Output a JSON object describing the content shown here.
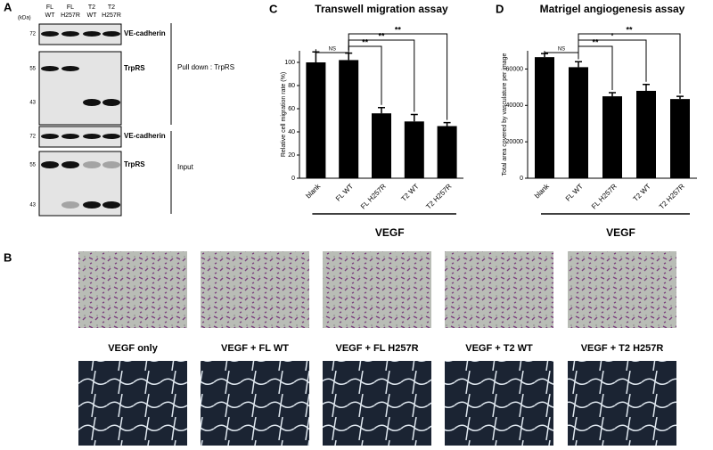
{
  "panel_a": {
    "label": "A",
    "unit": "(kDa)",
    "lanes": [
      [
        "FL",
        "WT"
      ],
      [
        "FL",
        "H257R"
      ],
      [
        "T2",
        "WT"
      ],
      [
        "T2",
        "H257R"
      ]
    ],
    "blots": [
      {
        "markers": [
          72
        ],
        "label": "VE-cadherin"
      },
      {
        "markers": [
          55,
          43
        ],
        "label": "TrpRS"
      },
      {
        "markers": [
          72
        ],
        "label": "VE-cadherin"
      },
      {
        "markers": [
          55,
          43
        ],
        "label": "TrpRS"
      }
    ],
    "groups": [
      "Pull down : TrpRS",
      "Input"
    ]
  },
  "panel_b": {
    "label": "B",
    "captions": [
      "VEGF only",
      "VEGF + FL WT",
      "VEGF + FL H257R",
      "VEGF + T2 WT",
      "VEGF + T2 H257R"
    ]
  },
  "chart_data": [
    {
      "type": "bar",
      "panel": "C",
      "title": "Transwell migration assay",
      "ylabel": "Relative cell migration rate (%)",
      "categories": [
        "blank",
        "FL WT",
        "FL H257R",
        "T2 WT",
        "T2 H257R"
      ],
      "values": [
        100,
        102,
        56,
        49,
        45
      ],
      "errors": [
        9,
        6,
        5,
        6,
        3
      ],
      "color": "#000000",
      "ylim": [
        0,
        110
      ],
      "yticks": [
        0,
        20,
        40,
        60,
        80,
        100
      ],
      "group_label": "VEGF",
      "annotations": [
        {
          "text": "NS",
          "from": 0,
          "to": 1
        },
        {
          "text": "**",
          "from": 1,
          "to": 2
        },
        {
          "text": "**",
          "from": 1,
          "to": 3
        },
        {
          "text": "**",
          "from": 1,
          "to": 4
        }
      ]
    },
    {
      "type": "bar",
      "panel": "D",
      "title": "Matrigel angiogenesis assay",
      "ylabel": "Total area covered by vasculature per image",
      "categories": [
        "blank",
        "FL WT",
        "FL H257R",
        "T2 WT",
        "T2 H257R"
      ],
      "values": [
        66500,
        61000,
        45000,
        48000,
        43500
      ],
      "errors": [
        2000,
        3000,
        2000,
        3500,
        1500
      ],
      "color": "#000000",
      "ylim": [
        0,
        70000
      ],
      "yticks": [
        0,
        20000,
        40000,
        60000
      ],
      "group_label": "VEGF",
      "annotations": [
        {
          "text": "NS",
          "from": 0,
          "to": 1
        },
        {
          "text": "**",
          "from": 1,
          "to": 2
        },
        {
          "text": "*",
          "from": 1,
          "to": 3
        },
        {
          "text": "**",
          "from": 1,
          "to": 4
        }
      ]
    }
  ]
}
